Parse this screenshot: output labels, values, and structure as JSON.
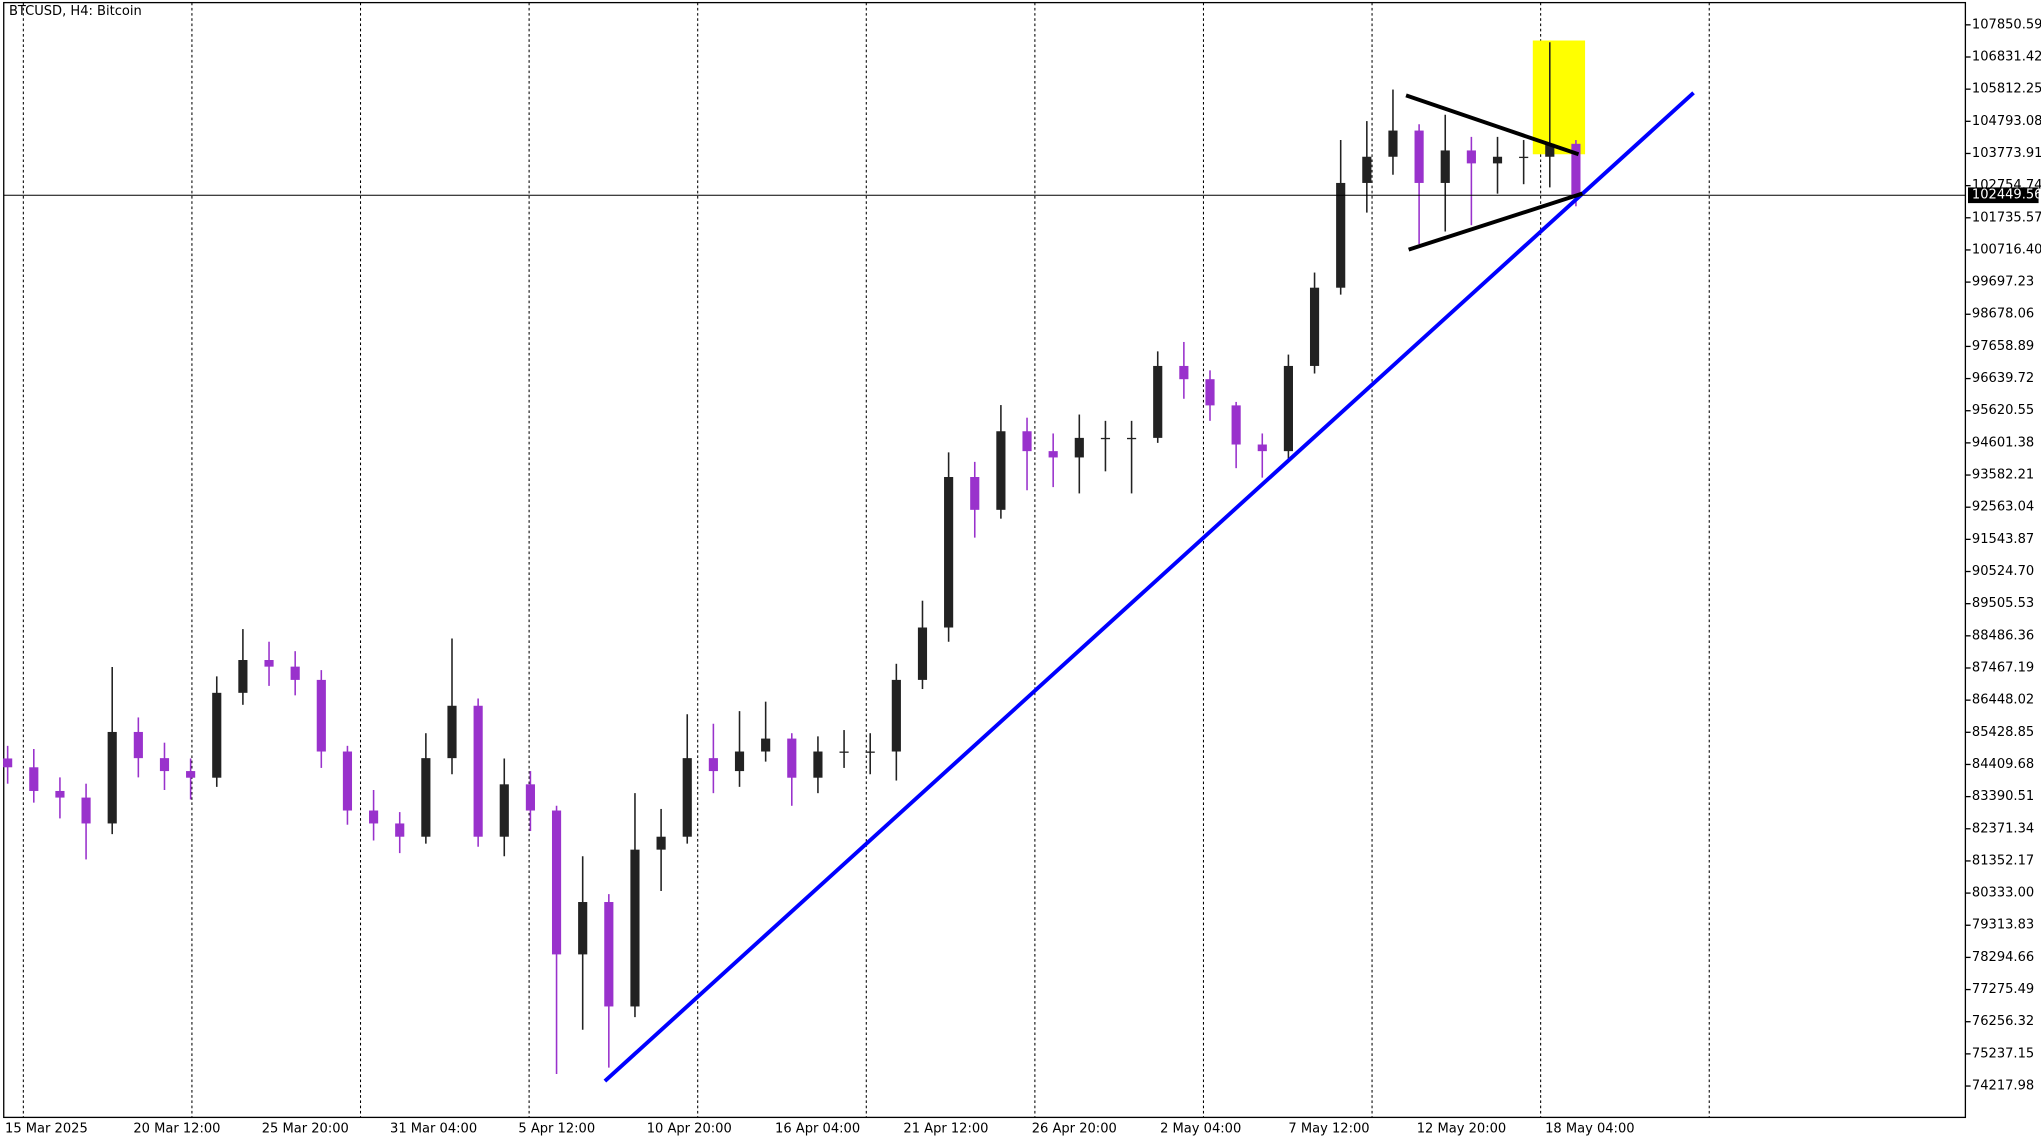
{
  "chart_data": {
    "type": "candlestick",
    "title": "BTCUSD, H4:  Bitcoin",
    "x_labels": [
      "15 Mar 2025",
      "20 Mar 12:00",
      "25 Mar 20:00",
      "31 Mar 04:00",
      "5 Apr 12:00",
      "10 Apr 20:00",
      "16 Apr 04:00",
      "21 Apr 12:00",
      "26 Apr 20:00",
      "2 May 04:00",
      "7 May 12:00",
      "12 May 20:00",
      "18 May 04:00"
    ],
    "open": [
      84600,
      84320,
      83570,
      83360,
      82540,
      85440,
      84610,
      84200,
      83990,
      86680,
      87720,
      87510,
      87090,
      84820,
      82950,
      82540,
      82120,
      84610,
      86270,
      82120,
      83780,
      82950,
      78390,
      80050,
      76740,
      81710,
      82120,
      84610,
      84200,
      84820,
      85230,
      83990,
      84820,
      84820,
      84820,
      87090,
      88750,
      93520,
      92480,
      94970,
      94340,
      94140,
      94760,
      94760,
      94760,
      97040,
      96620,
      95790,
      94550,
      94340,
      97040,
      99520,
      102840,
      103670,
      104500,
      102840,
      103870,
      103460,
      103670,
      103670,
      104080
    ],
    "high": [
      85000,
      84900,
      84000,
      83800,
      87500,
      85900,
      85100,
      84600,
      87200,
      88700,
      88300,
      88000,
      87400,
      85000,
      83600,
      82900,
      85400,
      88400,
      86500,
      84600,
      84200,
      83100,
      81500,
      80300,
      83500,
      83000,
      86000,
      85700,
      86100,
      86400,
      85400,
      85300,
      85500,
      85400,
      87600,
      89600,
      94300,
      94000,
      95800,
      95400,
      94900,
      95500,
      95300,
      95300,
      97500,
      97800,
      96900,
      95900,
      94900,
      97400,
      100000,
      104200,
      104800,
      105800,
      104700,
      105000,
      104300,
      104300,
      104200,
      107300,
      104200
    ],
    "low": [
      83800,
      83200,
      82700,
      81400,
      82200,
      84000,
      83600,
      83300,
      83700,
      86300,
      86900,
      86600,
      84300,
      82500,
      82000,
      81600,
      81900,
      84100,
      81800,
      81500,
      82300,
      74600,
      76000,
      74800,
      76400,
      80400,
      81900,
      83500,
      83700,
      84500,
      83100,
      83500,
      84300,
      84100,
      83900,
      86800,
      88300,
      91600,
      92200,
      93100,
      93200,
      93000,
      93700,
      93000,
      94600,
      96000,
      95300,
      93800,
      93500,
      94100,
      96800,
      99300,
      101900,
      103100,
      100900,
      101300,
      101500,
      102500,
      102800,
      102700,
      102100
    ],
    "close": [
      84320,
      83570,
      83360,
      82540,
      85440,
      84610,
      84200,
      83990,
      86680,
      87720,
      87510,
      87090,
      84820,
      82950,
      82540,
      82120,
      84610,
      86270,
      82120,
      83780,
      82950,
      78390,
      80050,
      76740,
      81710,
      82120,
      84610,
      84200,
      84820,
      85230,
      83990,
      84820,
      84820,
      84820,
      87090,
      88750,
      93520,
      92480,
      94970,
      94340,
      94140,
      94760,
      94760,
      94760,
      97040,
      96620,
      95790,
      94550,
      94340,
      97040,
      99520,
      102840,
      103670,
      104500,
      102840,
      103870,
      103460,
      103670,
      103670,
      104080,
      102449.56
    ],
    "up_color": "#222222",
    "down_color": "#9932cc",
    "current_price": 102449.56,
    "ylim": [
      73224,
      108638
    ],
    "yticks": [
      107850.59,
      106831.42,
      105812.25,
      104793.08,
      103773.91,
      102754.74,
      101735.57,
      {
        "value": 100716.4,
        "label": "100716.40"
      },
      99697.23,
      98678.06,
      97658.89,
      96639.72,
      95620.55,
      94601.38,
      93582.21,
      92563.04,
      91543.87,
      {
        "value": 90524.7,
        "label": "90524.70"
      },
      89505.53,
      88486.36,
      87467.19,
      86448.02,
      85428.85,
      84409.68,
      83390.51,
      82371.34,
      81352.17,
      {
        "value": 80333,
        "label": "80333.00"
      },
      79313.83,
      78294.66,
      77275.49,
      76256.32,
      75237.15,
      74217.98
    ],
    "annotations": [
      {
        "shape": "rect",
        "color": "#ffff00",
        "start": [
          58.35,
          107354
        ],
        "end": [
          60.35,
          103749
        ]
      },
      {
        "shape": "line",
        "color": "#0000ff",
        "start": [
          22.85,
          74376
        ],
        "end": [
          64.5,
          105696
        ]
      },
      {
        "shape": "line",
        "color": "#000000",
        "start": [
          53.5,
          105614
        ],
        "end": [
          60.1,
          103749
        ]
      },
      {
        "shape": "line",
        "color": "#000000",
        "start": [
          53.6,
          100725
        ],
        "end": [
          60.25,
          102506
        ]
      }
    ]
  }
}
